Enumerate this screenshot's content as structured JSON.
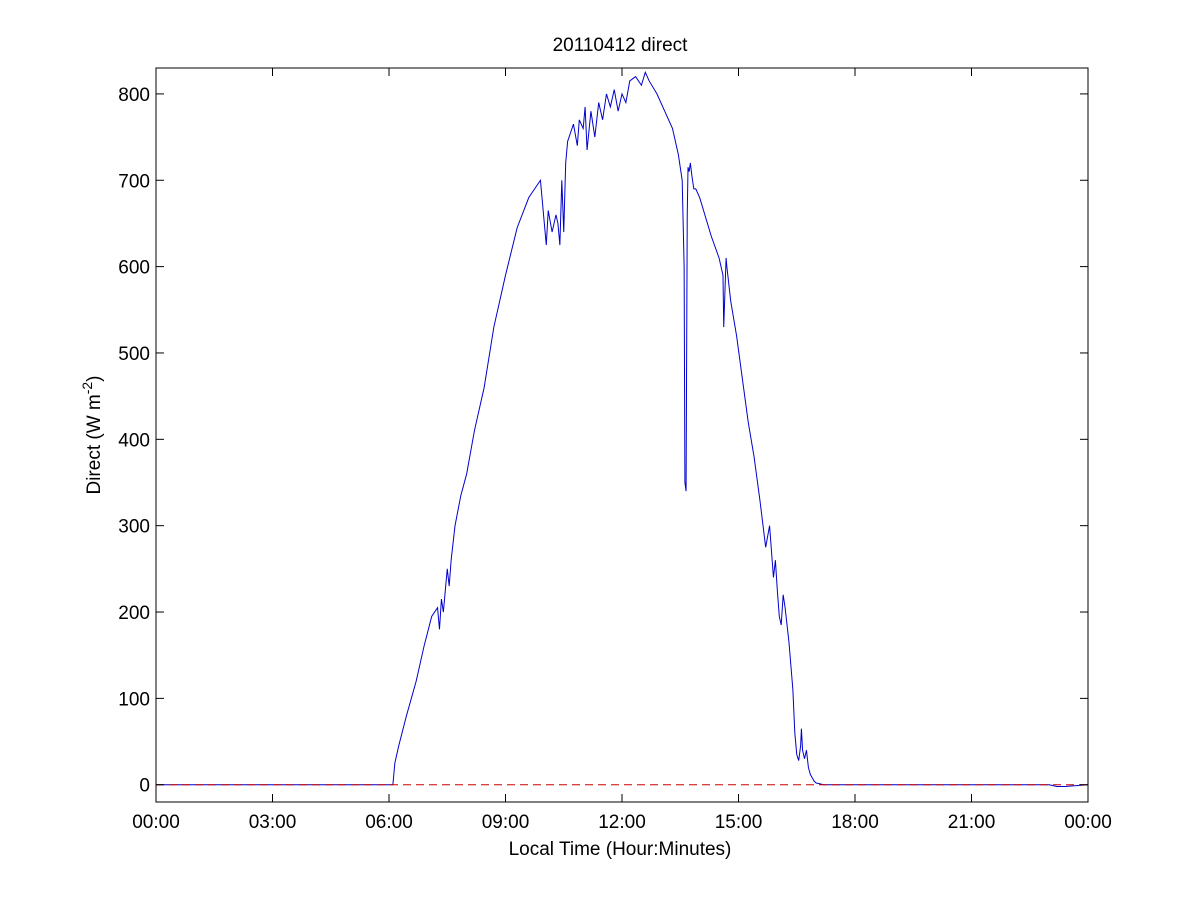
{
  "chart_data": {
    "type": "line",
    "title": "20110412 direct",
    "xlabel": "Local Time (Hour:Minutes)",
    "ylabel": {
      "main": "Direct (W m",
      "superscript": "-2",
      "close": ")"
    },
    "xlim_hours": [
      0,
      24
    ],
    "ylim": [
      -20,
      830
    ],
    "x_ticks": [
      {
        "hour": 0,
        "label": "00:00"
      },
      {
        "hour": 3,
        "label": "03:00"
      },
      {
        "hour": 6,
        "label": "06:00"
      },
      {
        "hour": 9,
        "label": "09:00"
      },
      {
        "hour": 12,
        "label": "12:00"
      },
      {
        "hour": 15,
        "label": "15:00"
      },
      {
        "hour": 18,
        "label": "18:00"
      },
      {
        "hour": 21,
        "label": "21:00"
      },
      {
        "hour": 24,
        "label": "00:00"
      }
    ],
    "y_ticks": [
      0,
      100,
      200,
      300,
      400,
      500,
      600,
      700,
      800
    ],
    "grid": false,
    "legend": "none",
    "series": [
      {
        "color": "#0000cc",
        "style": "solid",
        "x": [
          0,
          6.1,
          6.15,
          6.25,
          6.45,
          6.7,
          6.9,
          7.1,
          7.25,
          7.3,
          7.35,
          7.4,
          7.5,
          7.55,
          7.6,
          7.7,
          7.85,
          8.0,
          8.2,
          8.45,
          8.7,
          9.0,
          9.3,
          9.6,
          9.9,
          10.0,
          10.05,
          10.1,
          10.2,
          10.3,
          10.35,
          10.4,
          10.45,
          10.5,
          10.55,
          10.6,
          10.75,
          10.85,
          10.9,
          11.0,
          11.05,
          11.1,
          11.2,
          11.3,
          11.4,
          11.5,
          11.6,
          11.7,
          11.8,
          11.9,
          12.0,
          12.1,
          12.2,
          12.35,
          12.5,
          12.6,
          12.7,
          12.9,
          13.1,
          13.3,
          13.45,
          13.55,
          13.6,
          13.62,
          13.65,
          13.68,
          13.7,
          13.73,
          13.76,
          13.8,
          13.85,
          13.9,
          14.0,
          14.1,
          14.3,
          14.5,
          14.6,
          14.62,
          14.65,
          14.68,
          14.7,
          14.8,
          14.95,
          15.1,
          15.25,
          15.4,
          15.55,
          15.7,
          15.8,
          15.9,
          15.95,
          16.0,
          16.05,
          16.1,
          16.15,
          16.2,
          16.3,
          16.4,
          16.45,
          16.5,
          16.55,
          16.6,
          16.62,
          16.65,
          16.7,
          16.75,
          16.8,
          16.85,
          16.9,
          16.95,
          17.0,
          17.1,
          17.2,
          17.5,
          18.0,
          21.0,
          23.0,
          23.2,
          23.4,
          24.0
        ],
        "y": [
          0,
          0,
          25,
          45,
          80,
          120,
          160,
          195,
          205,
          180,
          215,
          200,
          250,
          230,
          260,
          300,
          335,
          360,
          410,
          460,
          530,
          590,
          645,
          680,
          700,
          650,
          625,
          665,
          640,
          660,
          650,
          625,
          700,
          640,
          720,
          745,
          765,
          740,
          770,
          760,
          785,
          735,
          780,
          750,
          790,
          770,
          800,
          785,
          805,
          780,
          800,
          790,
          815,
          820,
          810,
          825,
          815,
          800,
          780,
          760,
          730,
          700,
          600,
          350,
          340,
          660,
          715,
          710,
          720,
          705,
          690,
          690,
          680,
          665,
          635,
          610,
          590,
          530,
          570,
          610,
          600,
          560,
          520,
          470,
          420,
          380,
          330,
          275,
          300,
          240,
          260,
          225,
          195,
          185,
          220,
          205,
          165,
          110,
          60,
          35,
          28,
          45,
          65,
          40,
          30,
          40,
          20,
          12,
          8,
          4,
          2,
          1,
          0,
          0,
          0,
          0,
          0,
          -2,
          -2,
          0
        ]
      },
      {
        "color": "#cc0000",
        "style": "dashed",
        "x": [
          0,
          24
        ],
        "y": [
          0,
          0
        ]
      }
    ]
  }
}
